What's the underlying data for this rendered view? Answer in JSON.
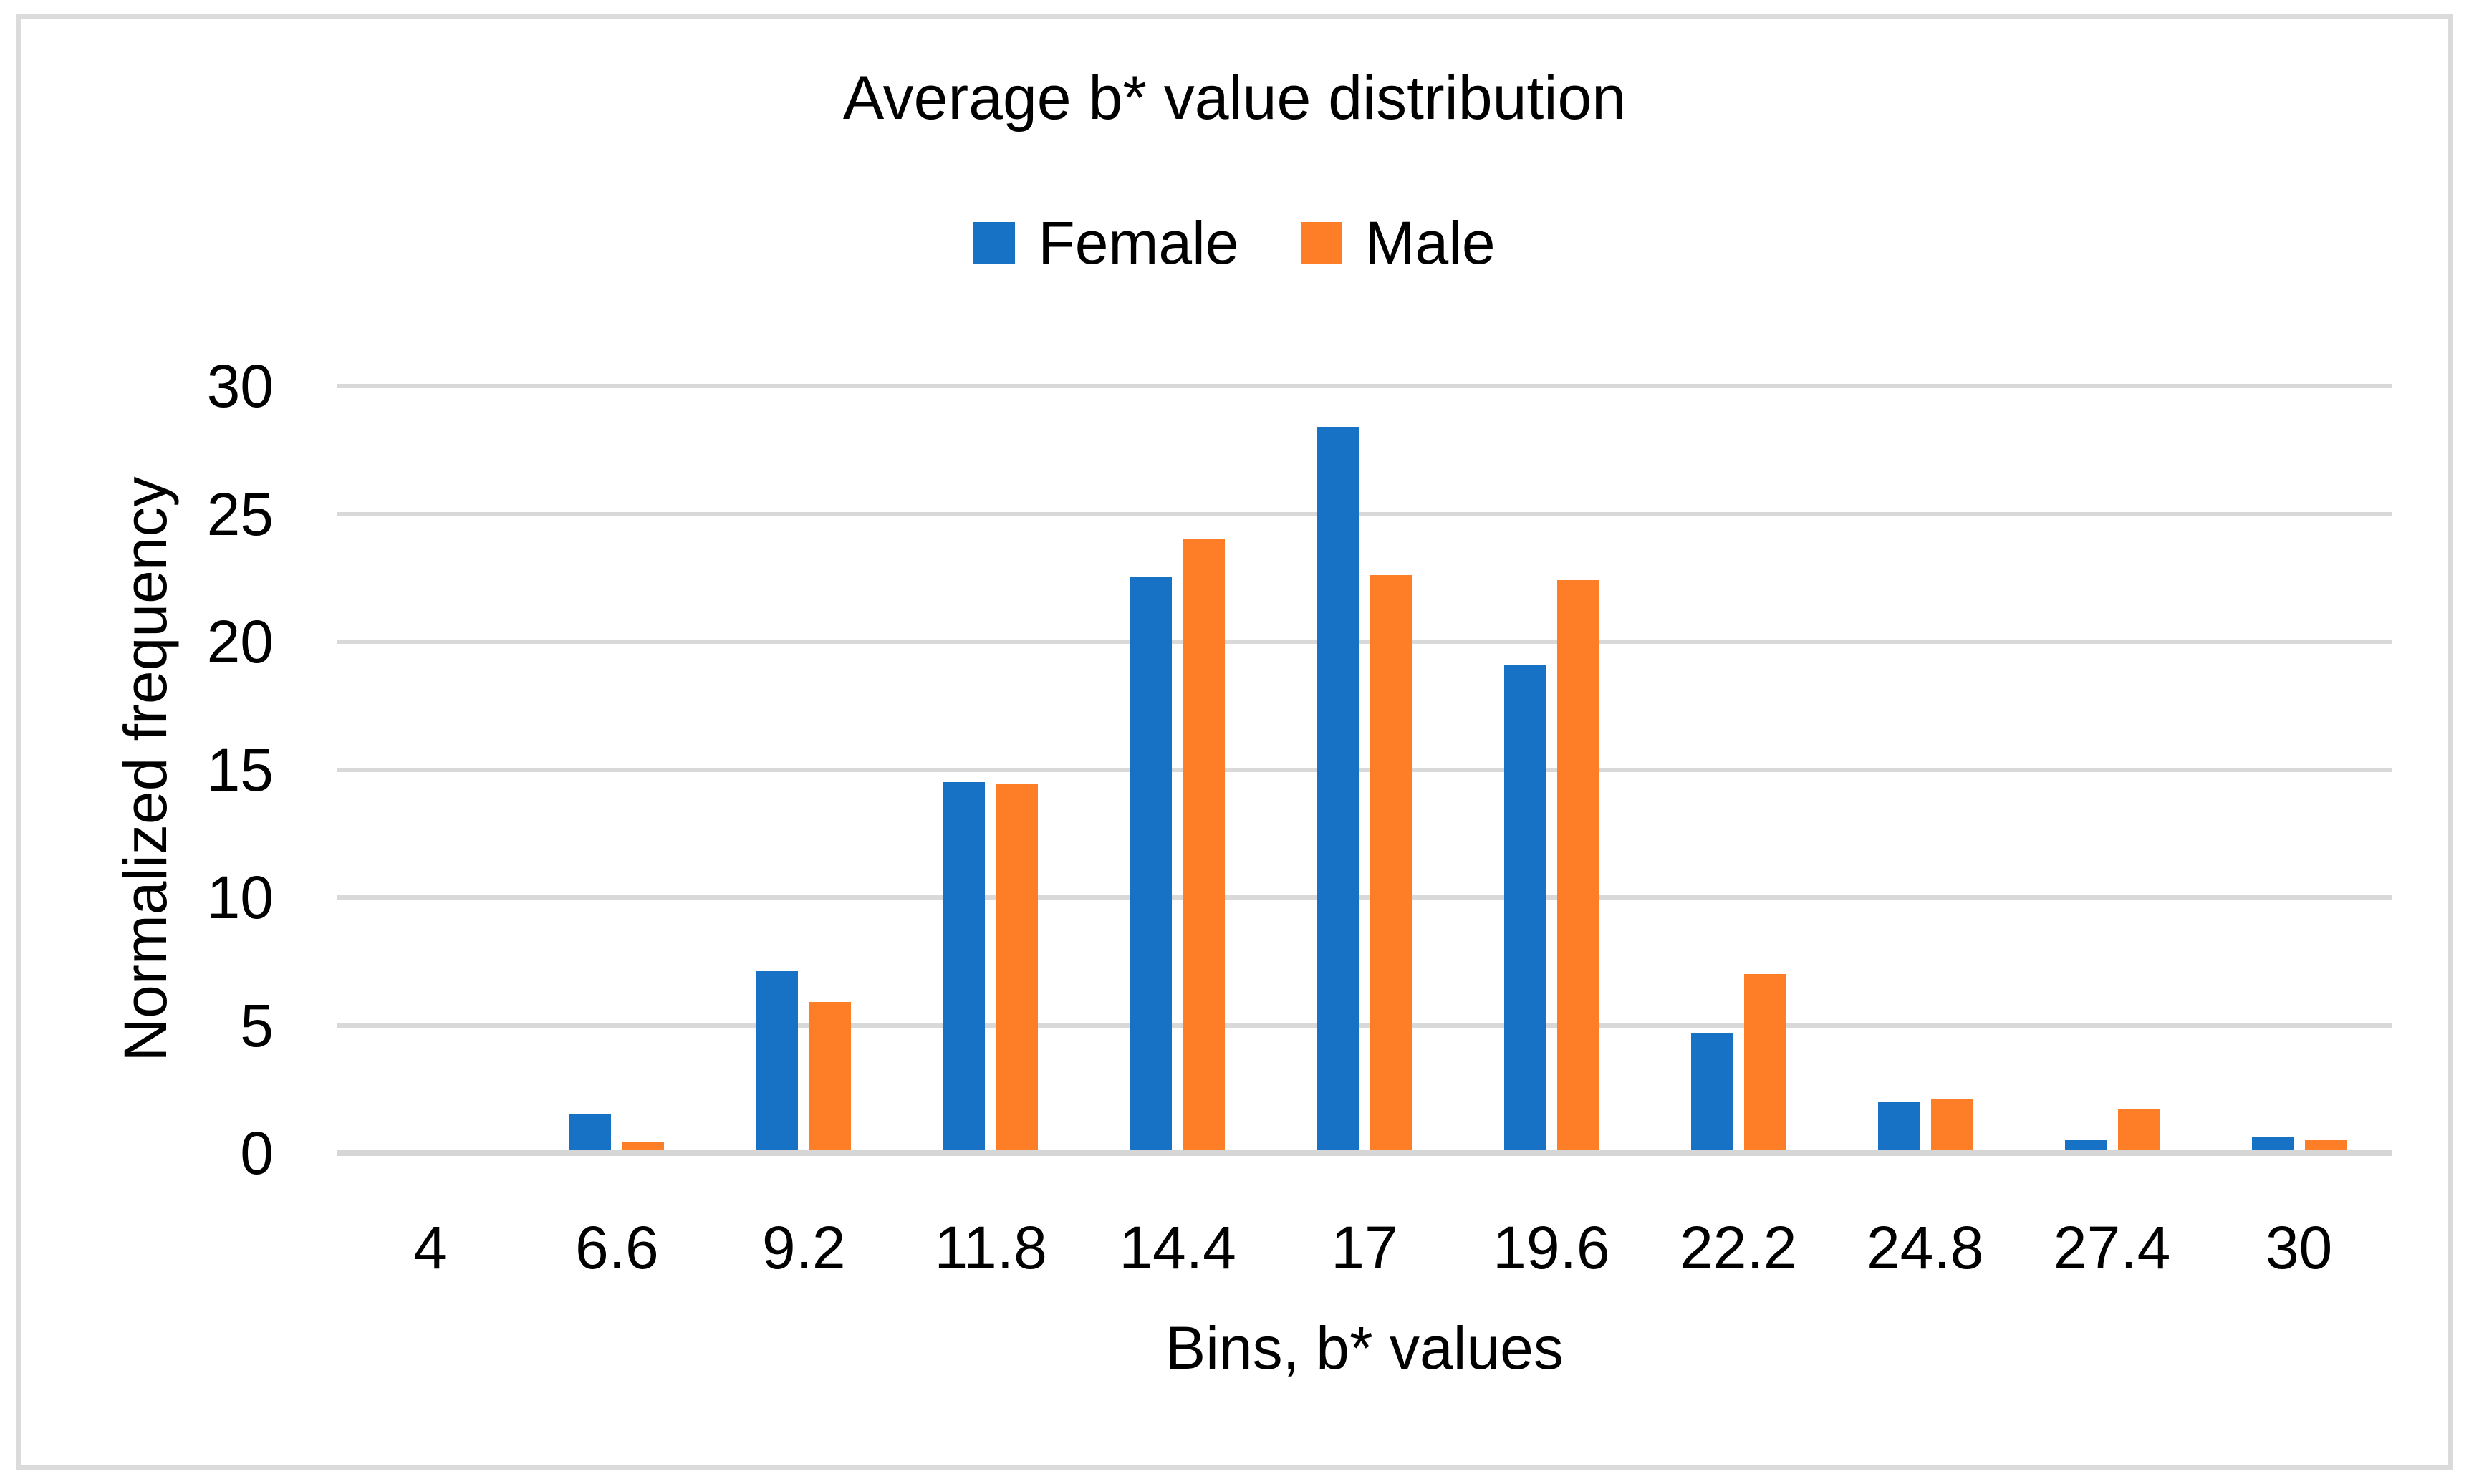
{
  "chart_data": {
    "type": "bar",
    "title": "Average b* value distribution",
    "xlabel": "Bins, b* values",
    "ylabel": "Normalized frequency",
    "categories": [
      "4",
      "6.6",
      "9.2",
      "11.8",
      "14.4",
      "17",
      "19.6",
      "22.2",
      "24.8",
      "27.4",
      "30"
    ],
    "series": [
      {
        "name": "Female",
        "color": "#1772C6",
        "values": [
          0,
          1.4,
          7.0,
          14.4,
          22.4,
          28.3,
          19.0,
          4.6,
          1.9,
          0.4,
          0.5
        ]
      },
      {
        "name": "Male",
        "color": "#FD7E26",
        "values": [
          0,
          0.3,
          5.8,
          14.3,
          23.9,
          22.5,
          22.3,
          6.9,
          2.0,
          1.6,
          0.4
        ]
      }
    ],
    "ylim": [
      0,
      30
    ],
    "yticks": [
      0,
      5,
      10,
      15,
      20,
      25,
      30
    ],
    "grid": true,
    "legend_position": "top"
  },
  "colors": {
    "gridline": "#D9D9D9",
    "axis_line": "#D6D6D6",
    "border": "#DBDBDB",
    "text": "#000000",
    "background": "#FFFFFF"
  }
}
